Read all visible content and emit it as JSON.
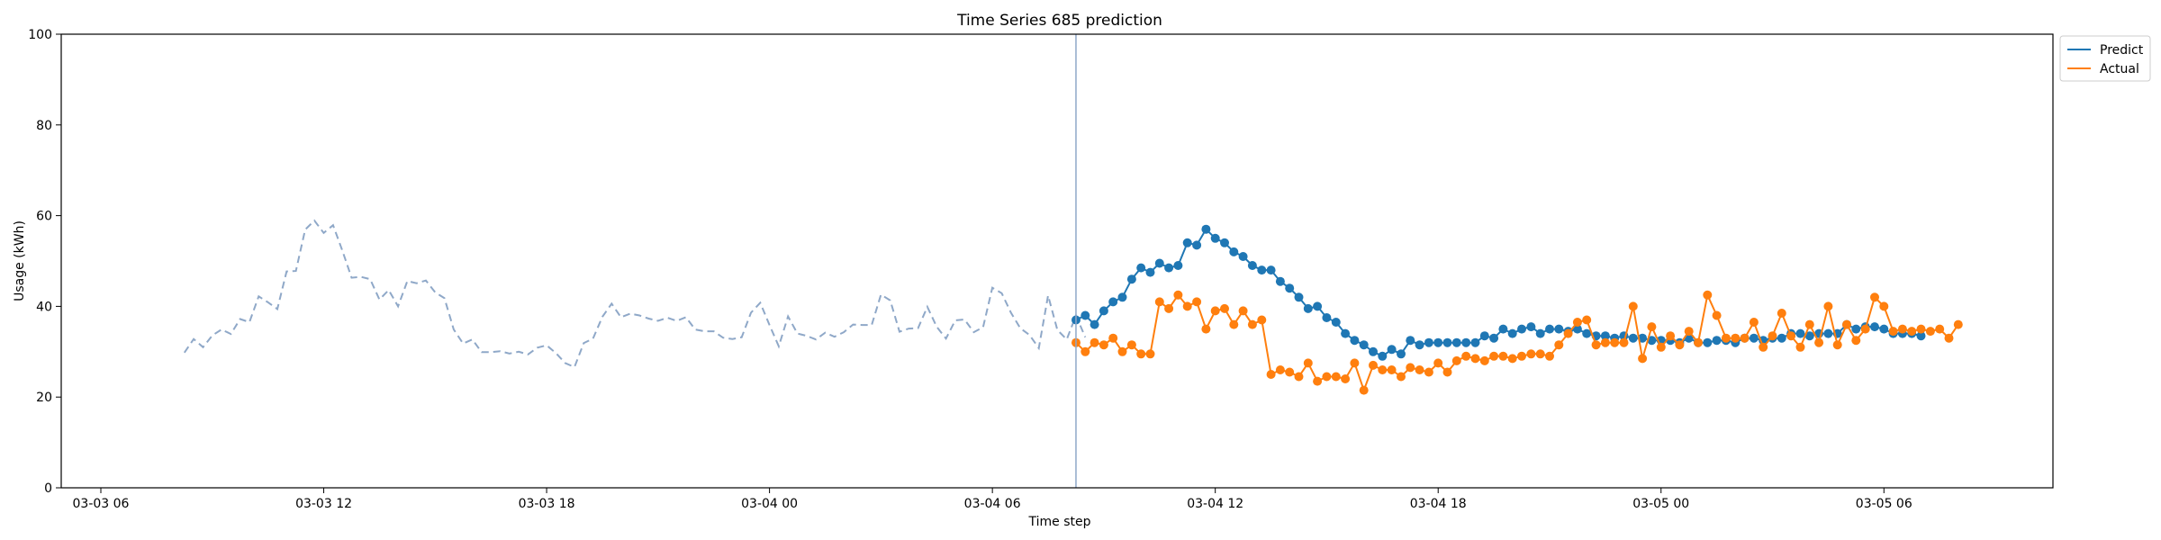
{
  "chart_data": {
    "type": "line",
    "title": "Time Series 685 prediction",
    "xlabel": "Time step",
    "ylabel": "Usage (kWh)",
    "ylim": [
      0,
      100
    ],
    "yticks": [
      0,
      20,
      40,
      60,
      80,
      100
    ],
    "xlim": [
      "2024-03-03 04:56",
      "2024-03-05 10:33"
    ],
    "xticks": [
      {
        "t": "2024-03-03 06:00",
        "label": "03-03 06"
      },
      {
        "t": "2024-03-03 12:00",
        "label": "03-03 12"
      },
      {
        "t": "2024-03-03 18:00",
        "label": "03-03 18"
      },
      {
        "t": "2024-03-04 00:00",
        "label": "03-04 00"
      },
      {
        "t": "2024-03-04 06:00",
        "label": "03-04 06"
      },
      {
        "t": "2024-03-04 12:00",
        "label": "03-04 12"
      },
      {
        "t": "2024-03-04 18:00",
        "label": "03-04 18"
      },
      {
        "t": "2024-03-05 00:00",
        "label": "03-05 00"
      },
      {
        "t": "2024-03-05 06:00",
        "label": "03-05 06"
      }
    ],
    "forecast_start": "2024-03-04 08:15",
    "history": {
      "start": "2024-03-03 08:15",
      "interval_minutes": 15,
      "values": [
        29.8,
        32.8,
        31.0,
        33.6,
        34.9,
        33.9,
        37.2,
        36.5,
        42.2,
        40.9,
        39.4,
        47.7,
        47.8,
        56.9,
        58.9,
        56.2,
        57.9,
        52.3,
        46.3,
        46.5,
        46.0,
        41.5,
        43.6,
        40.0,
        45.6,
        45.1,
        45.7,
        43.1,
        41.8,
        34.9,
        31.8,
        32.7,
        29.9,
        29.9,
        30.1,
        29.6,
        30.0,
        29.4,
        30.9,
        31.4,
        29.7,
        27.5,
        26.6,
        31.9,
        32.9,
        37.7,
        40.6,
        37.6,
        38.4,
        38.0,
        37.3,
        36.8,
        37.5,
        36.8,
        37.6,
        34.9,
        34.5,
        34.5,
        33.1,
        32.8,
        33.2,
        38.6,
        40.8,
        35.9,
        31.2,
        37.8,
        34.0,
        33.5,
        32.7,
        34.2,
        33.3,
        34.3,
        36.0,
        35.9,
        35.9,
        42.6,
        41.3,
        34.4,
        35.1,
        35.2,
        39.9,
        35.5,
        32.9,
        36.9,
        37.1,
        34.3,
        35.4,
        44.1,
        42.9,
        38.6,
        35.2,
        33.7,
        30.8,
        42.4,
        34.8,
        32.7,
        38.0,
        33.2
      ]
    },
    "forecast": {
      "start": "2024-03-04 08:15",
      "interval_minutes": 15,
      "series": [
        {
          "name": "Predict",
          "color": "#1f77b4",
          "values": [
            37.0,
            38.0,
            36.0,
            39.0,
            41.0,
            42.0,
            46.0,
            48.5,
            47.5,
            49.5,
            48.5,
            49.0,
            54.0,
            53.5,
            57.0,
            55.0,
            54.0,
            52.0,
            51.0,
            49.0,
            48.0,
            48.0,
            45.5,
            44.0,
            42.0,
            39.5,
            40.0,
            37.5,
            36.5,
            34.0,
            32.5,
            31.5,
            30.0,
            29.0,
            30.5,
            29.5,
            32.5,
            31.5,
            32.0,
            32.0,
            32.0,
            32.0,
            32.0,
            32.0,
            33.5,
            33.0,
            35.0,
            34.0,
            35.0,
            35.5,
            34.0,
            35.0,
            35.0,
            34.5,
            35.0,
            34.0,
            33.5,
            33.5,
            33.0,
            33.5,
            33.0,
            33.0,
            32.5,
            32.5,
            32.5,
            32.0,
            33.0,
            32.0,
            32.0,
            32.5,
            32.5,
            32.0,
            33.0,
            33.0,
            32.5,
            33.0,
            33.0,
            34.0,
            34.0,
            33.5,
            34.0,
            34.0,
            34.0,
            36.0,
            35.0,
            35.5,
            35.5,
            35.0,
            34.0,
            34.0,
            34.0,
            33.5
          ]
        },
        {
          "name": "Actual",
          "color": "#ff7f0e",
          "values": [
            32.0,
            30.0,
            32.0,
            31.5,
            33.0,
            30.0,
            31.5,
            29.5,
            29.5,
            41.0,
            39.5,
            42.5,
            40.0,
            41.0,
            35.0,
            39.0,
            39.5,
            36.0,
            39.0,
            36.0,
            37.0,
            25.0,
            26.0,
            25.5,
            24.5,
            27.5,
            23.5,
            24.5,
            24.5,
            24.0,
            27.5,
            21.5,
            27.0,
            26.0,
            26.0,
            24.5,
            26.5,
            26.0,
            25.5,
            27.5,
            25.5,
            28.0,
            29.0,
            28.5,
            28.0,
            29.0,
            29.0,
            28.5,
            29.0,
            29.5,
            29.5,
            29.0,
            31.5,
            34.0,
            36.5,
            37.0,
            31.5,
            32.0,
            32.0,
            32.0,
            40.0,
            28.5,
            35.5,
            31.0,
            33.5,
            31.5,
            34.5,
            32.0,
            42.5,
            38.0,
            33.0,
            33.0,
            33.0,
            36.5,
            31.0,
            33.5,
            38.5,
            33.5,
            31.0,
            36.0,
            32.0,
            40.0,
            31.5,
            36.0,
            32.5,
            35.0,
            42.0,
            40.0,
            34.5,
            35.0,
            34.5,
            35.0,
            34.5,
            35.0,
            33.0,
            36.0
          ]
        }
      ]
    },
    "legend": {
      "position": "top-right",
      "entries": [
        "Predict",
        "Actual"
      ]
    },
    "colors": {
      "history": "#8fa8c8",
      "vline": "#8fa8c8",
      "axis": "#000000"
    }
  }
}
